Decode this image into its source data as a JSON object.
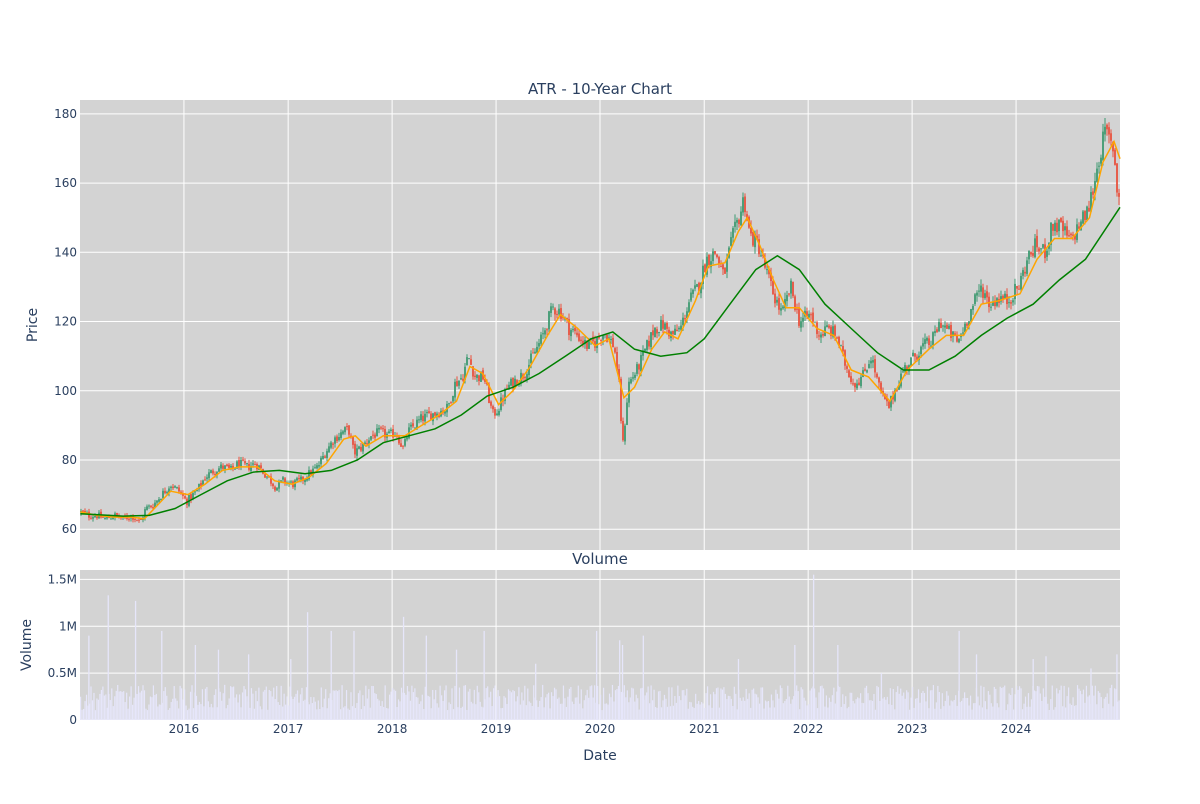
{
  "chart_data": [
    {
      "type": "candlestick",
      "title": "ATR - 10-Year Chart",
      "ylabel": "Price",
      "ylim": [
        54,
        184
      ],
      "yticks": [
        60,
        80,
        100,
        120,
        140,
        160,
        180
      ],
      "x_range": [
        "2015-01-01",
        "2024-12-31"
      ],
      "xticks": [
        {
          "date": "2016-01-01",
          "label": "2016"
        },
        {
          "date": "2017-01-01",
          "label": "2017"
        },
        {
          "date": "2018-01-01",
          "label": "2018"
        },
        {
          "date": "2019-01-01",
          "label": "2019"
        },
        {
          "date": "2020-01-01",
          "label": "2020"
        },
        {
          "date": "2021-01-01",
          "label": "2021"
        },
        {
          "date": "2022-01-01",
          "label": "2022"
        },
        {
          "date": "2023-01-01",
          "label": "2023"
        },
        {
          "date": "2024-01-01",
          "label": "2024"
        }
      ],
      "grid": true,
      "increasing_color": "#3d9970",
      "decreasing_color": "#e8513d",
      "background": "#d3d3d3",
      "price_path": [
        [
          "2015-01-02",
          65
        ],
        [
          "2015-02-01",
          64
        ],
        [
          "2015-03-01",
          64
        ],
        [
          "2015-04-01",
          63
        ],
        [
          "2015-05-01",
          64
        ],
        [
          "2015-06-01",
          63
        ],
        [
          "2015-07-01",
          64
        ],
        [
          "2015-08-01",
          62
        ],
        [
          "2015-08-20",
          66
        ],
        [
          "2015-09-15",
          67
        ],
        [
          "2015-10-15",
          70
        ],
        [
          "2015-11-15",
          73
        ],
        [
          "2015-12-15",
          71
        ],
        [
          "2016-01-10",
          68
        ],
        [
          "2016-02-15",
          71
        ],
        [
          "2016-03-15",
          75
        ],
        [
          "2016-04-15",
          77
        ],
        [
          "2016-05-15",
          78
        ],
        [
          "2016-06-15",
          77
        ],
        [
          "2016-07-10",
          79
        ],
        [
          "2016-08-10",
          78
        ],
        [
          "2016-09-10",
          79
        ],
        [
          "2016-10-01",
          77
        ],
        [
          "2016-11-01",
          74
        ],
        [
          "2016-11-20",
          72
        ],
        [
          "2016-12-15",
          74
        ],
        [
          "2017-01-15",
          73
        ],
        [
          "2017-02-15",
          74
        ],
        [
          "2017-03-15",
          76
        ],
        [
          "2017-04-15",
          78
        ],
        [
          "2017-05-10",
          82
        ],
        [
          "2017-06-10",
          86
        ],
        [
          "2017-07-10",
          88
        ],
        [
          "2017-08-01",
          89
        ],
        [
          "2017-08-20",
          82
        ],
        [
          "2017-09-20",
          84
        ],
        [
          "2017-10-20",
          87
        ],
        [
          "2017-11-20",
          88
        ],
        [
          "2017-12-20",
          87
        ],
        [
          "2018-01-15",
          88
        ],
        [
          "2018-02-10",
          83
        ],
        [
          "2018-02-25",
          88
        ],
        [
          "2018-03-20",
          90
        ],
        [
          "2018-04-15",
          92
        ],
        [
          "2018-05-15",
          93
        ],
        [
          "2018-06-15",
          94
        ],
        [
          "2018-07-15",
          95
        ],
        [
          "2018-08-10",
          102
        ],
        [
          "2018-09-05",
          104
        ],
        [
          "2018-09-25",
          110
        ],
        [
          "2018-10-20",
          104
        ],
        [
          "2018-11-20",
          104
        ],
        [
          "2018-12-20",
          93
        ],
        [
          "2019-01-10",
          95
        ],
        [
          "2019-02-10",
          101
        ],
        [
          "2019-03-10",
          103
        ],
        [
          "2019-04-10",
          105
        ],
        [
          "2019-05-10",
          110
        ],
        [
          "2019-06-10",
          115
        ],
        [
          "2019-07-01",
          120
        ],
        [
          "2019-07-20",
          124
        ],
        [
          "2019-08-15",
          123
        ],
        [
          "2019-09-15",
          118
        ],
        [
          "2019-10-15",
          116
        ],
        [
          "2019-11-15",
          113
        ],
        [
          "2019-12-15",
          114
        ],
        [
          "2020-01-15",
          117
        ],
        [
          "2020-02-20",
          113
        ],
        [
          "2020-03-10",
          100
        ],
        [
          "2020-03-20",
          83
        ],
        [
          "2020-04-10",
          102
        ],
        [
          "2020-05-10",
          106
        ],
        [
          "2020-06-10",
          112
        ],
        [
          "2020-07-10",
          118
        ],
        [
          "2020-08-10",
          119
        ],
        [
          "2020-09-10",
          116
        ],
        [
          "2020-10-10",
          118
        ],
        [
          "2020-11-10",
          126
        ],
        [
          "2020-12-10",
          130
        ],
        [
          "2021-01-10",
          138
        ],
        [
          "2021-02-10",
          140
        ],
        [
          "2021-03-10",
          133
        ],
        [
          "2021-04-10",
          144
        ],
        [
          "2021-05-10",
          152
        ],
        [
          "2021-05-20",
          156
        ],
        [
          "2021-06-10",
          145
        ],
        [
          "2021-07-10",
          142
        ],
        [
          "2021-08-01",
          136
        ],
        [
          "2021-09-01",
          128
        ],
        [
          "2021-10-01",
          122
        ],
        [
          "2021-11-01",
          130
        ],
        [
          "2021-12-01",
          120
        ],
        [
          "2022-01-10",
          122
        ],
        [
          "2022-02-10",
          116
        ],
        [
          "2022-03-10",
          118
        ],
        [
          "2022-04-10",
          116
        ],
        [
          "2022-05-10",
          108
        ],
        [
          "2022-06-10",
          102
        ],
        [
          "2022-07-10",
          104
        ],
        [
          "2022-08-10",
          110
        ],
        [
          "2022-09-10",
          100
        ],
        [
          "2022-10-10",
          95
        ],
        [
          "2022-11-01",
          100
        ],
        [
          "2022-12-01",
          106
        ],
        [
          "2023-01-10",
          110
        ],
        [
          "2023-02-10",
          113
        ],
        [
          "2023-03-10",
          114
        ],
        [
          "2023-04-10",
          120
        ],
        [
          "2023-05-10",
          117
        ],
        [
          "2023-06-10",
          114
        ],
        [
          "2023-07-10",
          120
        ],
        [
          "2023-08-10",
          126
        ],
        [
          "2023-09-01",
          130
        ],
        [
          "2023-10-01",
          125
        ],
        [
          "2023-11-01",
          127
        ],
        [
          "2023-12-01",
          126
        ],
        [
          "2024-01-10",
          130
        ],
        [
          "2024-02-10",
          138
        ],
        [
          "2024-03-10",
          142
        ],
        [
          "2024-04-10",
          140
        ],
        [
          "2024-05-10",
          148
        ],
        [
          "2024-06-10",
          147
        ],
        [
          "2024-07-10",
          143
        ],
        [
          "2024-08-10",
          148
        ],
        [
          "2024-09-10",
          152
        ],
        [
          "2024-10-01",
          160
        ],
        [
          "2024-10-20",
          168
        ],
        [
          "2024-11-10",
          175
        ],
        [
          "2024-11-25",
          172
        ],
        [
          "2024-12-10",
          170
        ],
        [
          "2024-12-20",
          158
        ],
        [
          "2024-12-31",
          157
        ]
      ],
      "series": [
        {
          "name": "",
          "color": "#ffa500",
          "values": [
            [
              "2015-01-02",
              65
            ],
            [
              "2015-03-01",
              64
            ],
            [
              "2015-05-01",
              63.5
            ],
            [
              "2015-07-01",
              63.5
            ],
            [
              "2015-08-15",
              63
            ],
            [
              "2015-10-01",
              67
            ],
            [
              "2015-11-15",
              71
            ],
            [
              "2016-01-15",
              70
            ],
            [
              "2016-03-15",
              73
            ],
            [
              "2016-05-15",
              77
            ],
            [
              "2016-07-15",
              78
            ],
            [
              "2016-09-15",
              78
            ],
            [
              "2016-11-15",
              74
            ],
            [
              "2017-01-15",
              73
            ],
            [
              "2017-03-15",
              75
            ],
            [
              "2017-05-15",
              79
            ],
            [
              "2017-07-15",
              86
            ],
            [
              "2017-08-25",
              87
            ],
            [
              "2017-10-01",
              84
            ],
            [
              "2017-12-01",
              87
            ],
            [
              "2018-02-15",
              87
            ],
            [
              "2018-04-15",
              90
            ],
            [
              "2018-06-15",
              93
            ],
            [
              "2018-08-15",
              97
            ],
            [
              "2018-10-01",
              107
            ],
            [
              "2018-11-15",
              105
            ],
            [
              "2019-01-10",
              96
            ],
            [
              "2019-03-01",
              100
            ],
            [
              "2019-05-01",
              107
            ],
            [
              "2019-07-01",
              116
            ],
            [
              "2019-08-15",
              122
            ],
            [
              "2019-10-15",
              118
            ],
            [
              "2019-12-15",
              113
            ],
            [
              "2020-02-01",
              115
            ],
            [
              "2020-03-25",
              98
            ],
            [
              "2020-05-01",
              101
            ],
            [
              "2020-07-01",
              112
            ],
            [
              "2020-08-15",
              117
            ],
            [
              "2020-10-01",
              115
            ],
            [
              "2020-12-01",
              126
            ],
            [
              "2021-01-15",
              136
            ],
            [
              "2021-03-15",
              137
            ],
            [
              "2021-05-01",
              146
            ],
            [
              "2021-06-01",
              150
            ],
            [
              "2021-07-15",
              142
            ],
            [
              "2021-09-01",
              132
            ],
            [
              "2021-10-15",
              124
            ],
            [
              "2021-12-01",
              124
            ],
            [
              "2022-02-01",
              118
            ],
            [
              "2022-04-01",
              116
            ],
            [
              "2022-06-01",
              106
            ],
            [
              "2022-08-01",
              104
            ],
            [
              "2022-10-15",
              97
            ],
            [
              "2022-12-15",
              106
            ],
            [
              "2023-03-01",
              112
            ],
            [
              "2023-05-01",
              116
            ],
            [
              "2023-07-01",
              116
            ],
            [
              "2023-09-01",
              125
            ],
            [
              "2023-11-01",
              126
            ],
            [
              "2024-01-15",
              128
            ],
            [
              "2024-03-15",
              138
            ],
            [
              "2024-05-15",
              144
            ],
            [
              "2024-07-15",
              144
            ],
            [
              "2024-09-15",
              150
            ],
            [
              "2024-11-01",
              166
            ],
            [
              "2024-12-10",
              172
            ],
            [
              "2024-12-31",
              167
            ]
          ]
        },
        {
          "name": "",
          "color": "#008000",
          "values": [
            [
              "2015-01-02",
              64.5
            ],
            [
              "2015-06-01",
              63.8
            ],
            [
              "2015-09-01",
              64
            ],
            [
              "2015-12-01",
              66
            ],
            [
              "2016-03-01",
              70
            ],
            [
              "2016-06-01",
              74
            ],
            [
              "2016-09-01",
              76.5
            ],
            [
              "2016-12-01",
              77
            ],
            [
              "2017-03-01",
              76
            ],
            [
              "2017-06-01",
              77
            ],
            [
              "2017-09-01",
              80
            ],
            [
              "2017-12-01",
              85
            ],
            [
              "2018-03-01",
              87
            ],
            [
              "2018-06-01",
              89
            ],
            [
              "2018-09-01",
              93
            ],
            [
              "2018-12-01",
              98.5
            ],
            [
              "2019-03-01",
              101
            ],
            [
              "2019-06-01",
              105
            ],
            [
              "2019-09-01",
              110
            ],
            [
              "2019-12-01",
              115
            ],
            [
              "2020-02-15",
              117
            ],
            [
              "2020-05-01",
              112
            ],
            [
              "2020-08-01",
              110
            ],
            [
              "2020-11-01",
              111
            ],
            [
              "2021-01-01",
              115
            ],
            [
              "2021-04-01",
              125
            ],
            [
              "2021-07-01",
              135
            ],
            [
              "2021-09-15",
              139
            ],
            [
              "2021-12-01",
              135
            ],
            [
              "2022-03-01",
              125
            ],
            [
              "2022-06-01",
              118
            ],
            [
              "2022-09-01",
              111
            ],
            [
              "2022-12-01",
              106
            ],
            [
              "2023-03-01",
              106
            ],
            [
              "2023-06-01",
              110
            ],
            [
              "2023-09-01",
              116
            ],
            [
              "2023-12-01",
              121
            ],
            [
              "2024-03-01",
              125
            ],
            [
              "2024-06-01",
              132
            ],
            [
              "2024-09-01",
              138
            ],
            [
              "2024-12-31",
              153
            ]
          ]
        }
      ]
    },
    {
      "type": "bar",
      "title": "Volume",
      "xlabel": "Date",
      "ylabel": "Volume",
      "ylim": [
        0,
        1600000
      ],
      "yticks": [
        {
          "value": 0,
          "label": "0"
        },
        {
          "value": 500000,
          "label": "0.5M"
        },
        {
          "value": 1000000,
          "label": "1M"
        },
        {
          "value": 1500000,
          "label": "1.5M"
        }
      ],
      "bar_color": "#e6e6fa",
      "background": "#d3d3d3",
      "typical_volume": 300000,
      "spikes": [
        [
          "2015-02-01",
          900000
        ],
        [
          "2015-04-10",
          1330000
        ],
        [
          "2015-07-15",
          1270000
        ],
        [
          "2015-10-15",
          950000
        ],
        [
          "2016-02-10",
          800000
        ],
        [
          "2016-05-01",
          750000
        ],
        [
          "2016-08-15",
          700000
        ],
        [
          "2017-01-10",
          650000
        ],
        [
          "2017-03-10",
          1150000
        ],
        [
          "2017-06-01",
          950000
        ],
        [
          "2017-08-20",
          950000
        ],
        [
          "2018-02-10",
          1100000
        ],
        [
          "2018-05-01",
          900000
        ],
        [
          "2018-08-15",
          750000
        ],
        [
          "2018-11-20",
          950000
        ],
        [
          "2019-05-20",
          600000
        ],
        [
          "2019-12-20",
          950000
        ],
        [
          "2020-03-10",
          850000
        ],
        [
          "2020-03-20",
          800000
        ],
        [
          "2020-06-01",
          900000
        ],
        [
          "2021-05-01",
          650000
        ],
        [
          "2021-11-15",
          800000
        ],
        [
          "2022-01-20",
          1550000
        ],
        [
          "2022-04-15",
          800000
        ],
        [
          "2022-09-15",
          500000
        ],
        [
          "2023-06-15",
          950000
        ],
        [
          "2023-08-15",
          700000
        ],
        [
          "2024-03-01",
          650000
        ],
        [
          "2024-04-15",
          680000
        ],
        [
          "2024-09-20",
          550000
        ],
        [
          "2024-12-20",
          700000
        ]
      ]
    }
  ]
}
